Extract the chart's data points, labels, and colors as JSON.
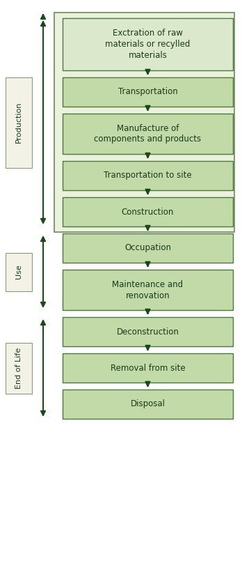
{
  "background_color": "#ffffff",
  "box_fill_extraction": "#dce8cc",
  "box_fill_green": "#c2d9a8",
  "box_edge_color": "#4a7a3a",
  "arrow_color": "#1a4a1a",
  "label_box_fill": "#f2f2e6",
  "label_box_edge": "#8a9a7a",
  "text_color": "#1a3a1a",
  "production_group_fill": "#eaf2de",
  "production_group_edge": "#6a8a5a",
  "flow_boxes": [
    "Exctration of raw\nmaterials or recylled\nmaterials",
    "Transportation",
    "Manufacture of\ncomponents and products",
    "Transportation to site",
    "Construction",
    "Occupation",
    "Maintenance and\nrenovation",
    "Deconstruction",
    "Removal from site",
    "Disposal"
  ],
  "font_size_boxes": 8.5,
  "font_size_labels": 8
}
